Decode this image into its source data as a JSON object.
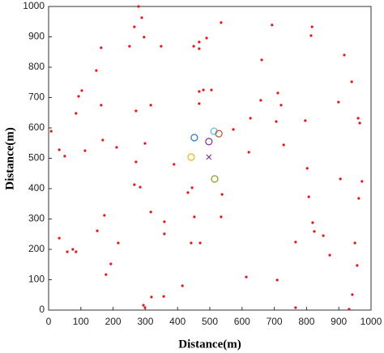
{
  "chart_data": {
    "type": "scatter",
    "xlabel": "Distance(m)",
    "ylabel": "Distance(m)",
    "xlim": [
      0,
      1000
    ],
    "ylim": [
      0,
      1000
    ],
    "xticks": [
      0,
      100,
      200,
      300,
      400,
      500,
      600,
      700,
      800,
      900,
      1000
    ],
    "yticks": [
      0,
      100,
      200,
      300,
      400,
      500,
      600,
      700,
      800,
      900,
      1000
    ],
    "grid": false,
    "series": [
      {
        "color": "#e8141c",
        "marker": "dot",
        "x": [
          279,
          289,
          266,
          296,
          251,
          349,
          450,
          467,
          467,
          490,
          535,
          693,
          817,
          814,
          917,
          163,
          148,
          661,
          103,
          93,
          85,
          163,
          271,
          317,
          467,
          480,
          505,
          467,
          658,
          711,
          721,
          706,
          626,
          573,
          796,
          940,
          960,
          965,
          899,
          8,
          33,
          50,
          113,
          168,
          211,
          299,
          271,
          389,
          621,
          729,
          802,
          905,
          972,
          266,
          284,
          445,
          432,
          538,
          807,
          962,
          173,
          317,
          359,
          452,
          535,
          819,
          824,
          852,
          151,
          359,
          766,
          442,
          470,
          216,
          950,
          33,
          75,
          58,
          85,
          872,
          957,
          193,
          178,
          613,
          709,
          415,
          319,
          357,
          942,
          294,
          299,
          766,
          932
        ],
        "y": [
          1000,
          963,
          933,
          899,
          869,
          869,
          869,
          883,
          861,
          896,
          947,
          939,
          933,
          904,
          840,
          864,
          789,
          824,
          723,
          704,
          648,
          675,
          656,
          675,
          720,
          725,
          725,
          680,
          691,
          715,
          675,
          621,
          632,
          595,
          624,
          752,
          632,
          616,
          685,
          589,
          528,
          507,
          525,
          560,
          536,
          549,
          488,
          480,
          520,
          544,
          467,
          432,
          424,
          413,
          405,
          403,
          387,
          381,
          373,
          368,
          312,
          323,
          291,
          307,
          307,
          288,
          259,
          245,
          261,
          251,
          224,
          221,
          221,
          221,
          221,
          237,
          200,
          192,
          192,
          181,
          147,
          152,
          117,
          109,
          99,
          80,
          43,
          45,
          51,
          16,
          8,
          8,
          3
        ]
      },
      {
        "color": "#1f77d0",
        "marker": "o",
        "x": [
          452
        ],
        "y": [
          568
        ]
      },
      {
        "color": "#5fb8e8",
        "marker": "o",
        "x": [
          513
        ],
        "y": [
          589
        ]
      },
      {
        "color": "#c0502a",
        "marker": "o",
        "x": [
          528
        ],
        "y": [
          581
        ]
      },
      {
        "color": "#7e2f8e",
        "marker": "o",
        "x": [
          497
        ],
        "y": [
          555
        ]
      },
      {
        "color": "#edb120",
        "marker": "o",
        "x": [
          442
        ],
        "y": [
          504
        ]
      },
      {
        "color": "#7e2f8e",
        "marker": "x",
        "x": [
          497
        ],
        "y": [
          504
        ]
      },
      {
        "color": "#8a9a2a",
        "marker": "o",
        "x": [
          515
        ],
        "y": [
          432
        ]
      }
    ]
  }
}
